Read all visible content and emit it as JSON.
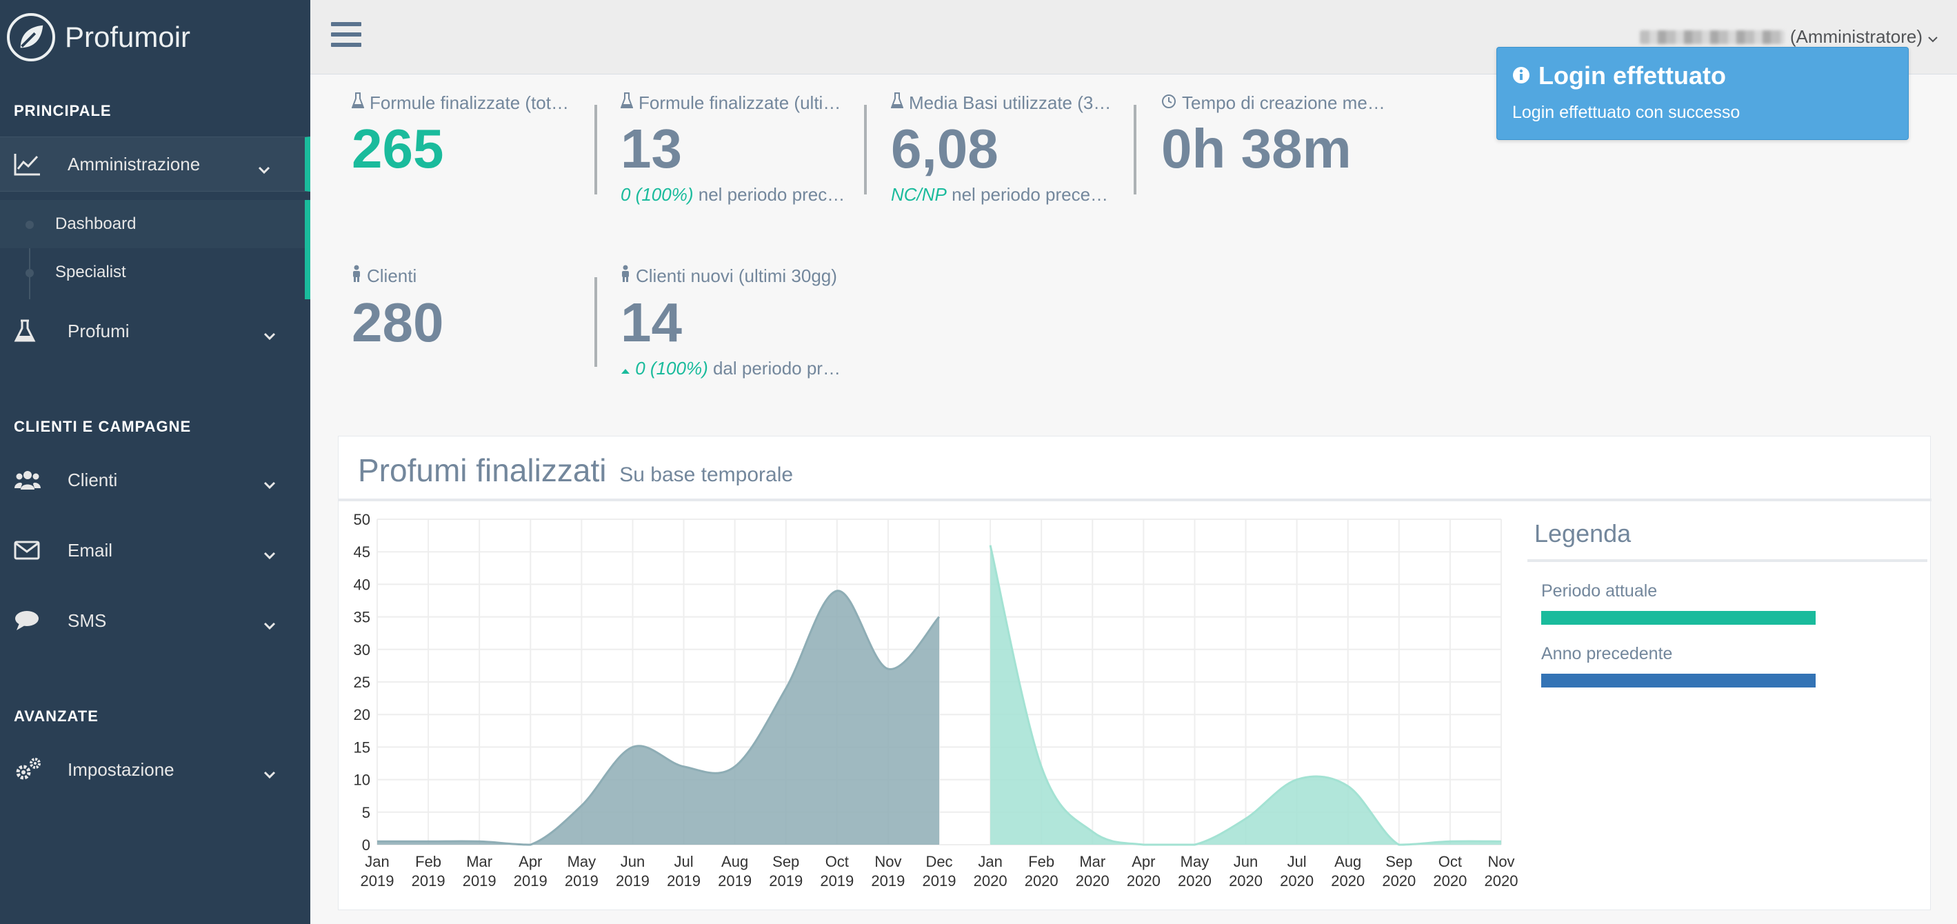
{
  "brand": {
    "name": "Profumoir"
  },
  "sidebar": {
    "sections": [
      "PRINCIPALE",
      "CLIENTI E CAMPAGNE",
      "AVANZATE"
    ],
    "items": {
      "amministrazione": "Amministrazione",
      "dashboard": "Dashboard",
      "specialist": "Specialist",
      "profumi": "Profumi",
      "clienti": "Clienti",
      "email": "Email",
      "sms": "SMS",
      "impostazione": "Impostazione"
    }
  },
  "topbar": {
    "user_role": "(Amministratore)"
  },
  "tiles": [
    {
      "icon": "flask-icon",
      "title": "Formule finalizzate (tot…",
      "count": "265",
      "bottom_highlight": "",
      "bottom_text": ""
    },
    {
      "icon": "flask-icon",
      "title": "Formule finalizzate (ulti…",
      "count": "13",
      "bottom_highlight": "0 (100%)",
      "bottom_text": "nel periodo prec…"
    },
    {
      "icon": "flask-icon",
      "title": "Media Basi utilizzate (3…",
      "count": "6,08",
      "bottom_highlight": "NC/NP",
      "bottom_text": "nel periodo prece…"
    },
    {
      "icon": "clock-icon",
      "title": "Tempo di creazione me…",
      "count": "0h 38m",
      "bottom_highlight": "",
      "bottom_text": ""
    },
    {
      "icon": "user-icon",
      "title": "Clienti",
      "count": "280",
      "bottom_highlight": "",
      "bottom_text": ""
    },
    {
      "icon": "user-icon",
      "title": "Clienti nuovi (ultimi 30gg)",
      "count": "14",
      "bottom_highlight": "0 (100%)",
      "bottom_text": "dal periodo pr…"
    }
  ],
  "toast": {
    "title": "Login effettuato",
    "message": "Login effettuato con successo"
  },
  "panel": {
    "title": "Profumi finalizzati",
    "subtitle": "Su base temporale"
  },
  "legend": {
    "title": "Legenda",
    "items": [
      {
        "label": "Periodo attuale",
        "color": "#1abb9c"
      },
      {
        "label": "Anno precedente",
        "color": "#3373b5"
      }
    ]
  },
  "chart_data": {
    "type": "area",
    "ylim": [
      0,
      50
    ],
    "yticks": [
      0,
      5,
      10,
      15,
      20,
      25,
      30,
      35,
      40,
      45,
      50
    ],
    "grid": true,
    "x": [
      [
        "Jan",
        "2019"
      ],
      [
        "Feb",
        "2019"
      ],
      [
        "Mar",
        "2019"
      ],
      [
        "Apr",
        "2019"
      ],
      [
        "May",
        "2019"
      ],
      [
        "Jun",
        "2019"
      ],
      [
        "Jul",
        "2019"
      ],
      [
        "Aug",
        "2019"
      ],
      [
        "Sep",
        "2019"
      ],
      [
        "Oct",
        "2019"
      ],
      [
        "Nov",
        "2019"
      ],
      [
        "Dec",
        "2019"
      ],
      [
        "Jan",
        "2020"
      ],
      [
        "Feb",
        "2020"
      ],
      [
        "Mar",
        "2020"
      ],
      [
        "Apr",
        "2020"
      ],
      [
        "May",
        "2020"
      ],
      [
        "Jun",
        "2020"
      ],
      [
        "Jul",
        "2020"
      ],
      [
        "Aug",
        "2020"
      ],
      [
        "Sep",
        "2020"
      ],
      [
        "Oct",
        "2020"
      ],
      [
        "Nov",
        "2020"
      ]
    ],
    "series": [
      {
        "color": "#8eadb5",
        "values": [
          0.5,
          0.5,
          0.5,
          0,
          6,
          15,
          12,
          12,
          24,
          39,
          27,
          35,
          null,
          null,
          null,
          null,
          null,
          null,
          null,
          null,
          null,
          null,
          null
        ]
      },
      {
        "color": "#a3e2d3",
        "values": [
          null,
          null,
          null,
          null,
          null,
          null,
          null,
          null,
          null,
          null,
          null,
          null,
          46,
          12,
          2,
          0,
          0,
          4,
          10,
          9,
          0,
          0.5,
          0.5
        ]
      }
    ],
    "colors": {
      "tick": "#333333",
      "grid": "#eeeeee"
    }
  }
}
